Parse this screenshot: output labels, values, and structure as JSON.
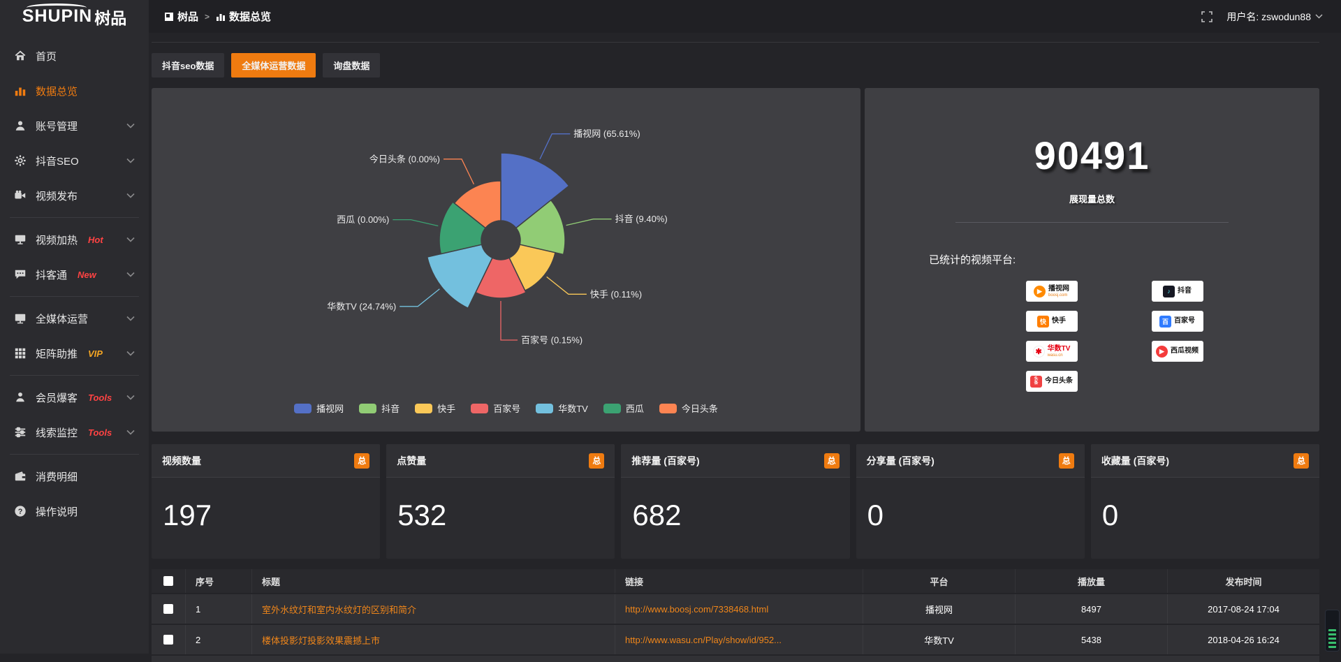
{
  "colors": {
    "accent_orange": "#ef7b10",
    "link_orange": "#f0861a",
    "hot_red": "#ff4343",
    "vip_yellow": "#f5a623"
  },
  "topbar": {
    "logo_en": "SHUPIN",
    "logo_cn": "树品",
    "breadcrumb": {
      "root": "树品",
      "separator": ">",
      "current": "数据总览"
    },
    "username": "用户名: zswodun88"
  },
  "sidebar": {
    "items": [
      {
        "label": "首页",
        "icon": "home",
        "active": false,
        "chevron": false,
        "badge": "",
        "badge_color": "",
        "divider_after": false
      },
      {
        "label": "数据总览",
        "icon": "chart",
        "active": true,
        "chevron": false,
        "badge": "",
        "badge_color": "",
        "divider_after": false
      },
      {
        "label": "账号管理",
        "icon": "user",
        "active": false,
        "chevron": true,
        "badge": "",
        "badge_color": "",
        "divider_after": false
      },
      {
        "label": "抖音SEO",
        "icon": "gear",
        "active": false,
        "chevron": true,
        "badge": "",
        "badge_color": "",
        "divider_after": false
      },
      {
        "label": "视频发布",
        "icon": "video",
        "active": false,
        "chevron": true,
        "badge": "",
        "badge_color": "",
        "divider_after": true
      },
      {
        "label": "视频加热",
        "icon": "monitor",
        "active": false,
        "chevron": true,
        "badge": "Hot",
        "badge_color": "#ff4343",
        "divider_after": false
      },
      {
        "label": "抖客通",
        "icon": "chat",
        "active": false,
        "chevron": true,
        "badge": "New",
        "badge_color": "#ff4343",
        "divider_after": true
      },
      {
        "label": "全媒体运营",
        "icon": "screen",
        "active": false,
        "chevron": true,
        "badge": "",
        "badge_color": "",
        "divider_after": false
      },
      {
        "label": "矩阵助推",
        "icon": "grid",
        "active": false,
        "chevron": true,
        "badge": "VIP",
        "badge_color": "#f5a623",
        "divider_after": true
      },
      {
        "label": "会员爆客",
        "icon": "member",
        "active": false,
        "chevron": true,
        "badge": "Tools",
        "badge_color": "#ff4343",
        "divider_after": false
      },
      {
        "label": "线索监控",
        "icon": "sliders",
        "active": false,
        "chevron": true,
        "badge": "Tools",
        "badge_color": "#ff4343",
        "divider_after": true
      },
      {
        "label": "消费明细",
        "icon": "wallet",
        "active": false,
        "chevron": false,
        "badge": "",
        "badge_color": "",
        "divider_after": false
      },
      {
        "label": "操作说明",
        "icon": "question",
        "active": false,
        "chevron": false,
        "badge": "",
        "badge_color": "",
        "divider_after": false
      }
    ]
  },
  "tabs": [
    {
      "label": "抖音seo数据",
      "active": false
    },
    {
      "label": "全媒体运营数据",
      "active": true
    },
    {
      "label": "询盘数据",
      "active": false
    }
  ],
  "chart_data": {
    "type": "pie",
    "variant": "nightingale-rose-donut",
    "categories": [
      "播视网",
      "抖音",
      "快手",
      "百家号",
      "华数TV",
      "西瓜",
      "今日头条"
    ],
    "values_percent": [
      65.61,
      9.4,
      0.11,
      0.15,
      24.74,
      0,
      0
    ],
    "colors": [
      "#5470c6",
      "#91cc75",
      "#fac858",
      "#ee6666",
      "#73c0de",
      "#3ba272",
      "#fc8452"
    ],
    "label_format": "{name} ({value}%)",
    "legend": [
      "播视网",
      "抖音",
      "快手",
      "百家号",
      "华数TV",
      "西瓜",
      "今日头条"
    ],
    "legend_position": "bottom",
    "layout": {
      "equal_angles": true,
      "inner_radius": 28,
      "outer_radii": [
        125,
        92,
        80,
        83,
        108,
        88,
        85
      ],
      "start_angle_deg": 0,
      "clockwise": true
    }
  },
  "summary": {
    "total": "90491",
    "total_label": "展现量总数",
    "platforms_title": "已统计的视频平台:",
    "platforms": [
      {
        "name": "播视网",
        "sub": "boosj.com",
        "logo": "boosj"
      },
      {
        "name": "抖音",
        "sub": "",
        "logo": "douyin"
      },
      {
        "name": "快手",
        "sub": "",
        "logo": "kuaishou"
      },
      {
        "name": "百家号",
        "sub": "",
        "logo": "baijiahao"
      },
      {
        "name": "华数TV",
        "sub": "wasu.cn",
        "logo": "wasu"
      },
      {
        "name": "西瓜视频",
        "sub": "",
        "logo": "xigua"
      },
      {
        "name": "今日头条",
        "sub": "",
        "logo": "toutiao"
      }
    ]
  },
  "stat_cards": [
    {
      "title": "视频数量",
      "badge": "总",
      "value": "197"
    },
    {
      "title": "点赞量",
      "badge": "总",
      "value": "532"
    },
    {
      "title": "推荐量 (百家号)",
      "badge": "总",
      "value": "682"
    },
    {
      "title": "分享量 (百家号)",
      "badge": "总",
      "value": "0"
    },
    {
      "title": "收藏量 (百家号)",
      "badge": "总",
      "value": "0"
    }
  ],
  "table": {
    "headers": {
      "no": "序号",
      "title": "标题",
      "link": "链接",
      "platform": "平台",
      "plays": "播放量",
      "time": "发布时间"
    },
    "rows": [
      {
        "no": "1",
        "title": "室外水纹灯和室内水纹灯的区别和简介",
        "link": "http://www.boosj.com/7338468.html",
        "platform": "播视网",
        "plays": "8497",
        "time": "2017-08-24 17:04"
      },
      {
        "no": "2",
        "title": "楼体投影灯投影效果震撼上市",
        "link": "http://www.wasu.cn/Play/show/id/952...",
        "platform": "华数TV",
        "plays": "5438",
        "time": "2018-04-26 16:24"
      }
    ]
  }
}
